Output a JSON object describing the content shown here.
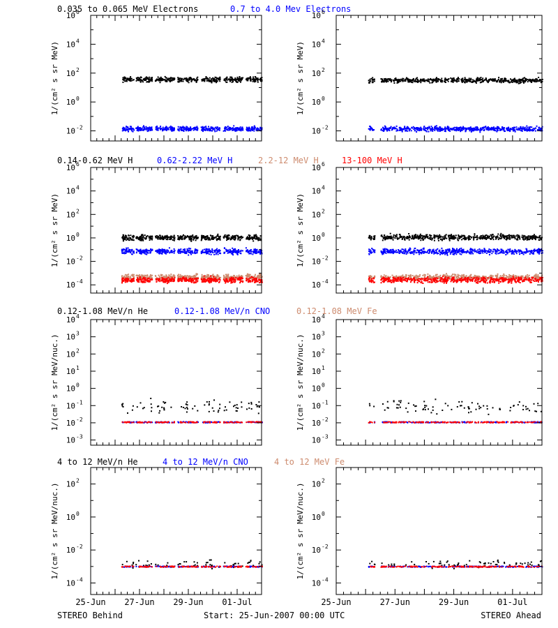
{
  "chart_data": [
    {
      "type": "scatter",
      "y_scale": "log",
      "ylim": [
        0.002,
        1000000
      ],
      "y_tick_exponents": [
        -2,
        0,
        2,
        4,
        6
      ],
      "ylabel": "1/(cm² s sr MeV)",
      "legend": [
        "0.035 to 0.065 MeV Electrons",
        "0.7 to 4.0 Mev Electrons"
      ],
      "series": [
        {
          "name": "0.035 to 0.065 MeV Electrons",
          "color": "#000000",
          "panel": "STEREO Behind",
          "approx_value": 40
        },
        {
          "name": "0.7 to 4.0 Mev Electrons",
          "color": "#0000ff",
          "panel": "STEREO Behind",
          "approx_value": 0.015
        },
        {
          "name": "0.035 to 0.065 MeV Electrons",
          "color": "#000000",
          "panel": "STEREO Ahead",
          "approx_value": 35
        },
        {
          "name": "0.7 to 4.0 Mev Electrons",
          "color": "#0000ff",
          "panel": "STEREO Ahead",
          "approx_value": 0.015
        }
      ]
    },
    {
      "type": "scatter",
      "y_scale": "log",
      "ylim": [
        2e-05,
        1000000
      ],
      "y_tick_exponents": [
        -4,
        -2,
        0,
        2,
        4,
        6
      ],
      "ylabel": "1/(cm² s sr MeV)",
      "legend": [
        "0.14-0.62 MeV H",
        "0.62-2.22 MeV H",
        "2.2-12 MeV H",
        "13-100 MeV H"
      ],
      "series": [
        {
          "name": "0.14-0.62 MeV H",
          "color": "#000000",
          "panel": "STEREO Behind",
          "approx_value": 1.2
        },
        {
          "name": "0.62-2.22 MeV H",
          "color": "#0000ff",
          "panel": "STEREO Behind",
          "approx_value": 0.08
        },
        {
          "name": "2.2-12 MeV H",
          "color": "#cd8b6e",
          "panel": "STEREO Behind",
          "approx_value": 0.0005
        },
        {
          "name": "13-100 MeV H",
          "color": "#ff0000",
          "panel": "STEREO Behind",
          "approx_value": 0.0003
        },
        {
          "name": "0.14-0.62 MeV H",
          "color": "#000000",
          "panel": "STEREO Ahead",
          "approx_value": 1.3
        },
        {
          "name": "0.62-2.22 MeV H",
          "color": "#0000ff",
          "panel": "STEREO Ahead",
          "approx_value": 0.08
        },
        {
          "name": "2.2-12 MeV H",
          "color": "#cd8b6e",
          "panel": "STEREO Ahead",
          "approx_value": 0.0005
        },
        {
          "name": "13-100 MeV H",
          "color": "#ff0000",
          "panel": "STEREO Ahead",
          "approx_value": 0.0003
        }
      ]
    },
    {
      "type": "scatter",
      "y_scale": "log",
      "ylim": [
        0.0005,
        10000
      ],
      "y_tick_exponents": [
        -3,
        -2,
        -1,
        0,
        1,
        2,
        3,
        4
      ],
      "ylabel": "1/(cm² s sr MeV/nuc.)",
      "legend": [
        "0.12-1.08 MeV/n He",
        "0.12-1.08 MeV/n CNO",
        "0.12-1.08 MeV Fe"
      ],
      "series": [
        {
          "name": "0.12-1.08 MeV/n He",
          "color": "#000000",
          "panel": "STEREO Behind",
          "approx_value": 0.1
        },
        {
          "name": "0.12-1.08 MeV/n CNO",
          "color": "#0000ff",
          "panel": "STEREO Behind",
          "approx_value": 0.011
        },
        {
          "name": "0.12-1.08 MeV Fe",
          "color": "#ff0000",
          "panel": "STEREO Behind",
          "approx_value": 0.011
        },
        {
          "name": "0.12-1.08 MeV/n He",
          "color": "#000000",
          "panel": "STEREO Ahead",
          "approx_value": 0.1
        },
        {
          "name": "0.12-1.08 MeV/n CNO",
          "color": "#0000ff",
          "panel": "STEREO Ahead",
          "approx_value": 0.011
        },
        {
          "name": "0.12-1.08 MeV Fe",
          "color": "#ff0000",
          "panel": "STEREO Ahead",
          "approx_value": 0.011
        }
      ]
    },
    {
      "type": "scatter",
      "y_scale": "log",
      "ylim": [
        2e-05,
        1000
      ],
      "y_tick_exponents": [
        -4,
        -2,
        0,
        2
      ],
      "ylabel": "1/(cm² s sr MeV/nuc.)",
      "legend": [
        "4 to 12 MeV/n He",
        "4 to 12 MeV/n CNO",
        "4 to 12 MeV Fe"
      ],
      "series": [
        {
          "name": "4 to 12 MeV/n He",
          "color": "#000000",
          "panel": "STEREO Behind",
          "approx_value": 0.0015
        },
        {
          "name": "4 to 12 MeV/n CNO",
          "color": "#0000ff",
          "panel": "STEREO Behind",
          "approx_value": 0.001
        },
        {
          "name": "4 to 12 MeV Fe",
          "color": "#ff0000",
          "panel": "STEREO Behind",
          "approx_value": 0.001
        },
        {
          "name": "4 to 12 MeV/n He",
          "color": "#000000",
          "panel": "STEREO Ahead",
          "approx_value": 0.0015
        },
        {
          "name": "4 to 12 MeV/n CNO",
          "color": "#0000ff",
          "panel": "STEREO Ahead",
          "approx_value": 0.001
        },
        {
          "name": "4 to 12 MeV Fe",
          "color": "#ff0000",
          "panel": "STEREO Ahead",
          "approx_value": 0.001
        }
      ]
    }
  ],
  "legend_colors": [
    "#000000",
    "#0000ff",
    "#cd8b6e",
    "#ff0000"
  ],
  "x_axis": {
    "start": "2007-06-25",
    "end": "2007-07-02",
    "tick_labels": [
      {
        "label": "25-Jun",
        "date": "2007-06-25"
      },
      {
        "label": "27-Jun",
        "date": "2007-06-27"
      },
      {
        "label": "29-Jun",
        "date": "2007-06-29"
      },
      {
        "label": "01-Jul",
        "date": "2007-07-01"
      }
    ]
  },
  "data_coverage": {
    "STEREO Behind": [
      [
        "2007-06-26T06:00",
        "2007-06-26T18:00"
      ],
      [
        "2007-06-26T20:00",
        "2007-06-27T12:00"
      ],
      [
        "2007-06-27T15:00",
        "2007-06-28T10:00"
      ],
      [
        "2007-06-28T13:00",
        "2007-06-29T09:00"
      ],
      [
        "2007-06-29T12:00",
        "2007-06-30T07:00"
      ],
      [
        "2007-06-30T10:00",
        "2007-07-01T05:00"
      ],
      [
        "2007-07-01T08:00",
        "2007-07-02T00:00"
      ]
    ],
    "STEREO Ahead": [
      [
        "2007-06-26T02:00",
        "2007-06-26T07:00"
      ],
      [
        "2007-06-26T12:00",
        "2007-07-02T00:00"
      ]
    ]
  },
  "footer": {
    "left": "STEREO Behind",
    "center": "Start: 25-Jun-2007 00:00 UTC",
    "right": "STEREO Ahead"
  }
}
